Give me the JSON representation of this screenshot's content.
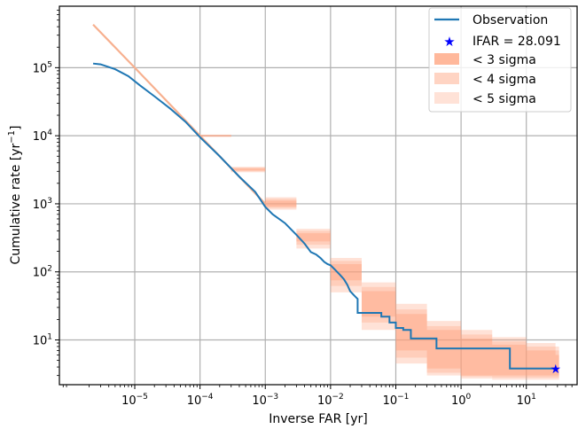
{
  "chart_data": {
    "type": "line",
    "xscale": "log",
    "yscale": "log",
    "xlabel": "Inverse FAR [yr]",
    "ylabel": "Cumulative rate [yr",
    "ylabel_sup": "−1",
    "ylabel_close": "]",
    "xlim": [
      7e-07,
      60
    ],
    "ylim": [
      2.2,
      800000
    ],
    "grid": true,
    "legend_placement": "top-right",
    "x_ticks": [
      {
        "value": 1e-05,
        "base": "10",
        "exp": "−5"
      },
      {
        "value": 0.0001,
        "base": "10",
        "exp": "−4"
      },
      {
        "value": 0.001,
        "base": "10",
        "exp": "−3"
      },
      {
        "value": 0.01,
        "base": "10",
        "exp": "−2"
      },
      {
        "value": 0.1,
        "base": "10",
        "exp": "−1"
      },
      {
        "value": 1,
        "base": "10",
        "exp": "0"
      },
      {
        "value": 10,
        "base": "10",
        "exp": "1"
      }
    ],
    "y_ticks": [
      {
        "value": 10,
        "base": "10",
        "exp": "1"
      },
      {
        "value": 100,
        "base": "10",
        "exp": "2"
      },
      {
        "value": 1000,
        "base": "10",
        "exp": "3"
      },
      {
        "value": 10000,
        "base": "10",
        "exp": "4"
      },
      {
        "value": 100000,
        "base": "10",
        "exp": "5"
      }
    ],
    "legend": {
      "observation": "Observation",
      "ifar": "IFAR = 28.091",
      "sigma3": "< 3 sigma",
      "sigma4": "< 4 sigma",
      "sigma5": "< 5 sigma"
    },
    "colors": {
      "observation": "#1f77b4",
      "background_line": "#f7b08f",
      "sigma": "#ffa07a",
      "ifar_star": "#0000ff",
      "grid": "#b0b0b0"
    },
    "background_line": {
      "x": [
        2.3e-06,
        1e-05,
        0.0001,
        0.001
      ],
      "y": [
        430000,
        100000,
        10000,
        1000
      ]
    },
    "sigma_bands": [
      {
        "name": "< 5 sigma",
        "opacity": 0.3,
        "x": [
          0.0001,
          0.0003,
          0.001,
          0.003,
          0.01,
          0.03,
          0.1,
          0.3,
          1,
          3,
          10,
          28
        ],
        "lower": [
          9600,
          2900,
          820,
          220,
          50,
          14,
          4.5,
          3.0,
          2.7,
          2.6,
          2.6,
          2.6
        ],
        "upper": [
          10400,
          3500,
          1250,
          430,
          160,
          70,
          34,
          19,
          14,
          11,
          9,
          8
        ]
      },
      {
        "name": "< 4 sigma",
        "opacity": 0.3,
        "x": [
          0.0001,
          0.0003,
          0.001,
          0.003,
          0.01,
          0.03,
          0.1,
          0.3,
          1,
          3,
          10,
          28
        ],
        "lower": [
          9700,
          3000,
          870,
          250,
          62,
          18,
          5.5,
          3.3,
          2.9,
          2.8,
          2.8,
          2.8
        ],
        "upper": [
          10300,
          3400,
          1180,
          400,
          145,
          60,
          28,
          16,
          12,
          9.5,
          8,
          7
        ]
      },
      {
        "name": "< 3 sigma",
        "opacity": 0.4,
        "x": [
          0.0001,
          0.0003,
          0.001,
          0.003,
          0.01,
          0.03,
          0.1,
          0.3,
          1,
          3,
          10,
          28
        ],
        "lower": [
          9800,
          3100,
          910,
          280,
          75,
          22,
          7,
          3.8,
          3.0,
          3.0,
          3.0,
          3.0
        ],
        "upper": [
          10200,
          3300,
          1110,
          370,
          130,
          52,
          24,
          14,
          10.5,
          8.5,
          7,
          6
        ]
      }
    ],
    "observation": {
      "x": [
        2.3e-06,
        3e-06,
        5e-06,
        8e-06,
        1.2e-05,
        2e-05,
        3.5e-05,
        6e-05,
        0.0001,
        0.0002,
        0.0004,
        0.0007,
        0.001,
        0.0013,
        0.002,
        0.003,
        0.004,
        0.005,
        0.006,
        0.007,
        0.008,
        0.009,
        0.01,
        0.012,
        0.014,
        0.016,
        0.018,
        0.02,
        0.023,
        0.026,
        0.026,
        0.06,
        0.06,
        0.08,
        0.08,
        0.1,
        0.1,
        0.13,
        0.13,
        0.17,
        0.17,
        0.42,
        0.42,
        5.6,
        5.6,
        28.091
      ],
      "y": [
        115000,
        112000,
        95000,
        75000,
        55000,
        38000,
        25000,
        16000,
        9500,
        5000,
        2500,
        1500,
        900,
        700,
        520,
        350,
        260,
        195,
        180,
        160,
        140,
        130,
        125,
        105,
        90,
        78,
        65,
        52,
        45,
        40,
        25,
        25,
        22,
        22,
        18,
        18,
        15,
        15,
        14,
        14,
        10.5,
        10.5,
        7.5,
        7.5,
        3.8,
        3.8
      ]
    },
    "ifar_point": {
      "x": 28.091,
      "y": 3.8
    }
  }
}
